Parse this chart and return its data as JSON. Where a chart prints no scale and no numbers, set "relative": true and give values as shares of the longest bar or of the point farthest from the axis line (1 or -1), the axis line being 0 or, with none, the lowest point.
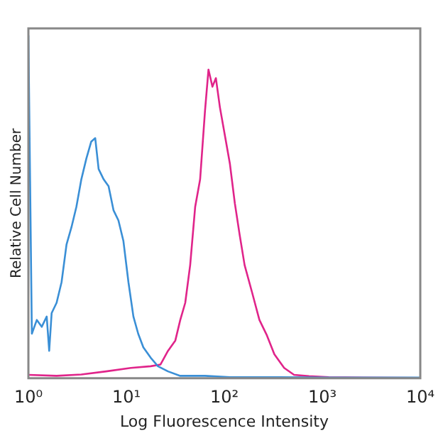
{
  "chart_data": {
    "type": "line",
    "xlabel": "Log Fluorescence Intensity",
    "ylabel": "Relative Cell Number",
    "relative": true,
    "log": "x",
    "grid": false,
    "legend": false,
    "marker": "none",
    "line_style": "solid",
    "xlim": [
      1,
      10000
    ],
    "xticks": [
      {
        "value": 1,
        "label": "10⁰"
      },
      {
        "value": 10,
        "label": "10¹"
      },
      {
        "value": 100,
        "label": "10²"
      },
      {
        "value": 1000,
        "label": "10³"
      },
      {
        "value": 10000,
        "label": "10⁴"
      }
    ],
    "series": [
      {
        "color": "#3a8fd6",
        "x": [
          1,
          1.085,
          1.219,
          1.368,
          1.538,
          1.63,
          1.727,
          1.94,
          2.18,
          2.45,
          2.75,
          3.09,
          3.47,
          3.9,
          4.38,
          4.81,
          5.21,
          5.86,
          6.58,
          7.39,
          8.3,
          9.33,
          10.5,
          11.8,
          13.2,
          14.9,
          17.7,
          21,
          26.6,
          35.5,
          63.5,
          114,
          364,
          1163,
          10000
        ],
        "values": [
          1,
          0.13,
          0.17,
          0.15,
          0.18,
          0.08,
          0.19,
          0.22,
          0.28,
          0.39,
          0.44,
          0.5,
          0.58,
          0.64,
          0.69,
          0.7,
          0.61,
          0.58,
          0.56,
          0.49,
          0.46,
          0.4,
          0.28,
          0.18,
          0.13,
          0.09,
          0.06,
          0.035,
          0.02,
          0.007,
          0.007,
          0.003,
          0.003,
          0.002,
          0.002
        ]
      },
      {
        "color": "#e0248a",
        "x": [
          1,
          1.94,
          3.47,
          6.21,
          11.1,
          17.7,
          22.3,
          26.6,
          31.6,
          35.5,
          39.9,
          44.8,
          50.4,
          56.6,
          63.5,
          68.9,
          75.6,
          82,
          90.1,
          101,
          114,
          128,
          143,
          161,
          192,
          228,
          272,
          324,
          408,
          515,
          731,
          1163,
          10000
        ],
        "values": [
          0.01,
          0.007,
          0.011,
          0.02,
          0.03,
          0.035,
          0.04,
          0.08,
          0.11,
          0.17,
          0.22,
          0.33,
          0.5,
          0.58,
          0.78,
          0.9,
          0.85,
          0.875,
          0.79,
          0.71,
          0.625,
          0.51,
          0.42,
          0.33,
          0.25,
          0.17,
          0.125,
          0.07,
          0.03,
          0.01,
          0.006,
          0.003,
          0.001
        ]
      }
    ]
  }
}
